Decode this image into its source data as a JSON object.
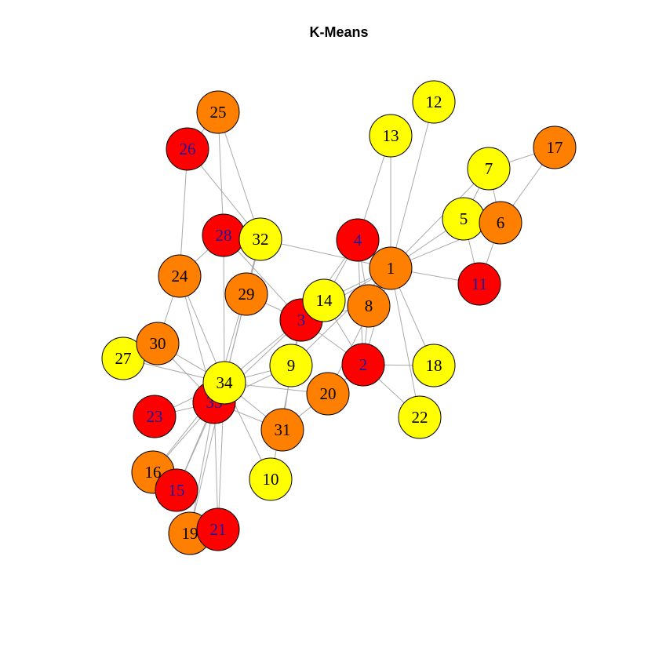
{
  "title": "K-Means",
  "colors": {
    "red": "#ff0000",
    "orange": "#ff7f00",
    "yellow": "#ffff00",
    "label_dark": "#1a1aa0",
    "label_light": "#000000",
    "edge": "#aaaaaa"
  },
  "nodes": [
    {
      "id": "1",
      "color": "orange"
    },
    {
      "id": "2",
      "color": "red"
    },
    {
      "id": "3",
      "color": "red"
    },
    {
      "id": "4",
      "color": "red"
    },
    {
      "id": "5",
      "color": "yellow"
    },
    {
      "id": "6",
      "color": "orange"
    },
    {
      "id": "7",
      "color": "yellow"
    },
    {
      "id": "8",
      "color": "orange"
    },
    {
      "id": "9",
      "color": "yellow"
    },
    {
      "id": "10",
      "color": "yellow"
    },
    {
      "id": "11",
      "color": "red"
    },
    {
      "id": "12",
      "color": "yellow"
    },
    {
      "id": "13",
      "color": "yellow"
    },
    {
      "id": "14",
      "color": "yellow"
    },
    {
      "id": "15",
      "color": "red"
    },
    {
      "id": "16",
      "color": "orange"
    },
    {
      "id": "17",
      "color": "orange"
    },
    {
      "id": "18",
      "color": "yellow"
    },
    {
      "id": "19",
      "color": "orange"
    },
    {
      "id": "20",
      "color": "orange"
    },
    {
      "id": "21",
      "color": "red"
    },
    {
      "id": "22",
      "color": "yellow"
    },
    {
      "id": "23",
      "color": "red"
    },
    {
      "id": "24",
      "color": "orange"
    },
    {
      "id": "25",
      "color": "orange"
    },
    {
      "id": "26",
      "color": "red"
    },
    {
      "id": "27",
      "color": "yellow"
    },
    {
      "id": "28",
      "color": "red"
    },
    {
      "id": "29",
      "color": "orange"
    },
    {
      "id": "30",
      "color": "orange"
    },
    {
      "id": "31",
      "color": "orange"
    },
    {
      "id": "32",
      "color": "yellow"
    },
    {
      "id": "33",
      "color": "red"
    },
    {
      "id": "34",
      "color": "yellow"
    }
  ],
  "edges": [
    [
      "1",
      "2"
    ],
    [
      "1",
      "3"
    ],
    [
      "1",
      "4"
    ],
    [
      "1",
      "5"
    ],
    [
      "1",
      "6"
    ],
    [
      "1",
      "7"
    ],
    [
      "1",
      "8"
    ],
    [
      "1",
      "9"
    ],
    [
      "1",
      "11"
    ],
    [
      "1",
      "12"
    ],
    [
      "1",
      "13"
    ],
    [
      "1",
      "14"
    ],
    [
      "1",
      "18"
    ],
    [
      "1",
      "20"
    ],
    [
      "1",
      "22"
    ],
    [
      "1",
      "32"
    ],
    [
      "2",
      "3"
    ],
    [
      "2",
      "4"
    ],
    [
      "2",
      "8"
    ],
    [
      "2",
      "14"
    ],
    [
      "2",
      "18"
    ],
    [
      "2",
      "20"
    ],
    [
      "2",
      "22"
    ],
    [
      "2",
      "31"
    ],
    [
      "3",
      "4"
    ],
    [
      "3",
      "8"
    ],
    [
      "3",
      "9"
    ],
    [
      "3",
      "10"
    ],
    [
      "3",
      "14"
    ],
    [
      "3",
      "28"
    ],
    [
      "3",
      "29"
    ],
    [
      "3",
      "33"
    ],
    [
      "4",
      "8"
    ],
    [
      "4",
      "13"
    ],
    [
      "4",
      "14"
    ],
    [
      "5",
      "7"
    ],
    [
      "5",
      "11"
    ],
    [
      "6",
      "7"
    ],
    [
      "6",
      "11"
    ],
    [
      "6",
      "17"
    ],
    [
      "7",
      "17"
    ],
    [
      "9",
      "31"
    ],
    [
      "9",
      "33"
    ],
    [
      "9",
      "34"
    ],
    [
      "10",
      "34"
    ],
    [
      "14",
      "34"
    ],
    [
      "15",
      "33"
    ],
    [
      "15",
      "34"
    ],
    [
      "16",
      "33"
    ],
    [
      "16",
      "34"
    ],
    [
      "19",
      "33"
    ],
    [
      "19",
      "34"
    ],
    [
      "20",
      "34"
    ],
    [
      "21",
      "33"
    ],
    [
      "21",
      "34"
    ],
    [
      "23",
      "33"
    ],
    [
      "23",
      "34"
    ],
    [
      "24",
      "26"
    ],
    [
      "24",
      "28"
    ],
    [
      "24",
      "30"
    ],
    [
      "24",
      "33"
    ],
    [
      "24",
      "34"
    ],
    [
      "25",
      "26"
    ],
    [
      "25",
      "28"
    ],
    [
      "25",
      "32"
    ],
    [
      "26",
      "32"
    ],
    [
      "27",
      "30"
    ],
    [
      "27",
      "34"
    ],
    [
      "28",
      "34"
    ],
    [
      "29",
      "32"
    ],
    [
      "29",
      "34"
    ],
    [
      "30",
      "33"
    ],
    [
      "30",
      "34"
    ],
    [
      "31",
      "33"
    ],
    [
      "31",
      "34"
    ],
    [
      "32",
      "33"
    ],
    [
      "32",
      "34"
    ],
    [
      "33",
      "34"
    ]
  ]
}
